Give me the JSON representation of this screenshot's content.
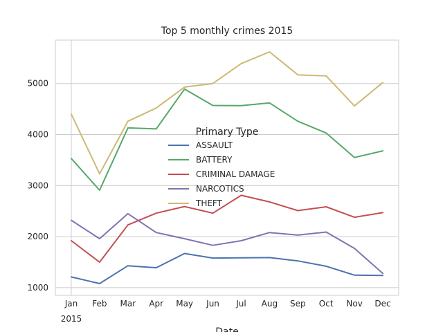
{
  "chart_data": {
    "type": "line",
    "title": "Top 5 monthly crimes 2015",
    "xlabel": "Date",
    "ylabel": "",
    "categories": [
      "Jan",
      "Feb",
      "Mar",
      "Apr",
      "May",
      "Jun",
      "Jul",
      "Aug",
      "Sep",
      "Oct",
      "Nov",
      "Dec"
    ],
    "x_sublabel": "2015",
    "yticks": [
      1000,
      2000,
      3000,
      4000,
      5000
    ],
    "ylim": [
      850,
      5850
    ],
    "grid": true,
    "legend_title": "Primary Type",
    "legend_position": "center",
    "series": [
      {
        "name": "ASSAULT",
        "color": "#4c72b0",
        "values": [
          1210,
          1080,
          1430,
          1390,
          1670,
          1580,
          1585,
          1590,
          1525,
          1420,
          1245,
          1240
        ]
      },
      {
        "name": "BATTERY",
        "color": "#55a868",
        "values": [
          3530,
          2910,
          4130,
          4110,
          4890,
          4570,
          4565,
          4620,
          4260,
          4030,
          3550,
          3680
        ]
      },
      {
        "name": "CRIMINAL DAMAGE",
        "color": "#c44e52",
        "values": [
          1920,
          1500,
          2230,
          2460,
          2590,
          2460,
          2810,
          2680,
          2510,
          2585,
          2380,
          2470
        ]
      },
      {
        "name": "NARCOTICS",
        "color": "#8172b2",
        "values": [
          2320,
          1960,
          2450,
          2080,
          1960,
          1830,
          1920,
          2080,
          2030,
          2090,
          1770,
          1280
        ]
      },
      {
        "name": "THEFT",
        "color": "#ccb974",
        "values": [
          4400,
          3230,
          4260,
          4520,
          4930,
          5000,
          5390,
          5620,
          5170,
          5150,
          4560,
          5020
        ]
      }
    ]
  }
}
